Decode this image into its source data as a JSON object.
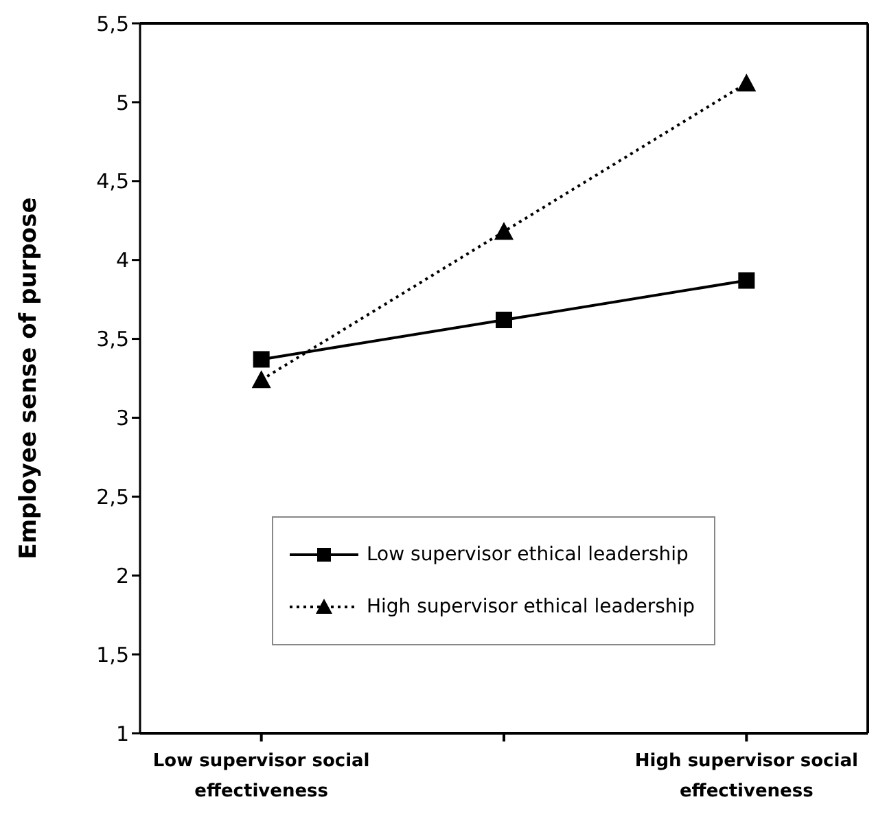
{
  "chart_data": {
    "type": "line",
    "ylabel": "Employee sense of purpose",
    "categories": [
      "Low supervisor social effectiveness",
      null,
      "High supervisor social effectiveness"
    ],
    "series": [
      {
        "name": "Low supervisor ethical leadership",
        "color": "#000000",
        "values": [
          3.37,
          3.62,
          3.87
        ],
        "marker": "square",
        "line_style": "solid"
      },
      {
        "name": "High supervisor ethical leadership",
        "color": "#000000",
        "values": [
          3.24,
          4.18,
          5.12
        ],
        "marker": "triangle",
        "line_style": "dotted"
      }
    ],
    "ylim": [
      1,
      5.5
    ],
    "yticks": [
      1,
      {
        "value": 1.5,
        "label": "1,5"
      },
      2,
      {
        "value": 2.5,
        "label": "2,5"
      },
      3,
      {
        "value": 3.5,
        "label": "3,5"
      },
      4,
      {
        "value": 4.5,
        "label": "4,5"
      },
      5,
      {
        "value": 5.5,
        "label": "5,5"
      }
    ],
    "grid": false,
    "legend": "bottom"
  }
}
